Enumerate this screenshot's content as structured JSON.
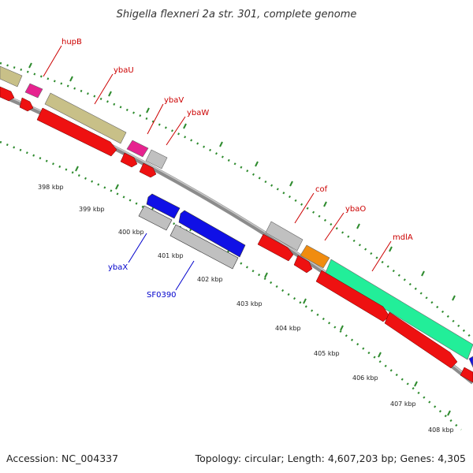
{
  "title": "Shigella flexneri 2a str. 301, complete genome",
  "footer": {
    "accession": "Accession: NC_004337",
    "topology": "Topology: circular; Length: 4,607,203 bp; Genes: 4,305"
  },
  "colors": {
    "backbone": "#8c8c8c",
    "tick": "#2e8b2e",
    "forward_label": "#cc0000",
    "reverse_label": "#0000cc",
    "cds": "#ee1111",
    "gene_khaki": "#c8c088",
    "gene_pink": "#e6228f",
    "gene_grey": "#c0c0c0",
    "gene_orange": "#f08c10",
    "gene_mint": "#22ee99",
    "gene_blue": "#1010e6"
  },
  "tick_labels": [
    "398 kbp",
    "399 kbp",
    "400 kbp",
    "401 kbp",
    "402 kbp",
    "403 kbp",
    "404 kbp",
    "405 kbp",
    "406 kbp",
    "407 kbp",
    "408 kbp"
  ],
  "gene_labels": [
    {
      "text": "hupB",
      "strand": "forward"
    },
    {
      "text": "ybaU",
      "strand": "forward"
    },
    {
      "text": "ybaV",
      "strand": "forward"
    },
    {
      "text": "ybaW",
      "strand": "forward"
    },
    {
      "text": "cof",
      "strand": "forward"
    },
    {
      "text": "ybaO",
      "strand": "forward"
    },
    {
      "text": "mdlA",
      "strand": "forward"
    },
    {
      "text": "ybaX",
      "strand": "reverse"
    },
    {
      "text": "SF0390",
      "strand": "reverse"
    }
  ]
}
